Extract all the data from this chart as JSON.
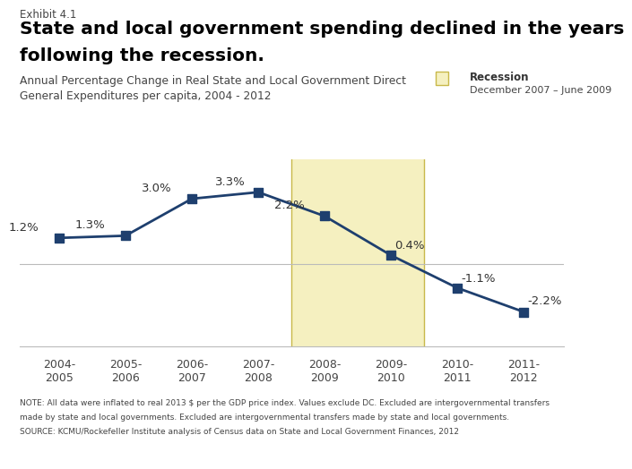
{
  "categories": [
    "2004-\n2005",
    "2005-\n2006",
    "2006-\n2007",
    "2007-\n2008",
    "2008-\n2009",
    "2009-\n2010",
    "2010-\n2011",
    "2011-\n2012"
  ],
  "values": [
    1.2,
    1.3,
    3.0,
    3.3,
    2.2,
    0.4,
    -1.1,
    -2.2
  ],
  "labels": [
    "1.2%",
    "1.3%",
    "3.0%",
    "3.3%",
    "2.2%",
    "0.4%",
    "-1.1%",
    "-2.2%"
  ],
  "line_color": "#1e3f6e",
  "marker_color": "#1e3f6e",
  "recession_fill": "#f5f0c0",
  "recession_edge": "#c8b84a",
  "exhibit_label": "Exhibit 4.1",
  "title_line1": "State and local government spending declined in the years",
  "title_line2": "following the recession.",
  "subtitle_line1": "Annual Percentage Change in Real State and Local Government Direct",
  "subtitle_line2": "General Expenditures per capita, 2004 - 2012",
  "legend_title": "Recession",
  "legend_subtitle": "December 2007 – June 2009",
  "note_line1": "NOTE: All data were inflated to real 2013 $ per the GDP price index. Values exclude DC. Excluded are intergovernmental transfers",
  "note_line2": "made by state and local governments. Excluded are intergovernmental transfers made by state and local governments.",
  "note_line3": "SOURCE: KCMU/Rockefeller Institute analysis of Census data on State and Local Government Finances, 2012",
  "ylim": [
    -3.8,
    4.8
  ],
  "background_color": "#ffffff",
  "logo_color": "#1e3f6e"
}
